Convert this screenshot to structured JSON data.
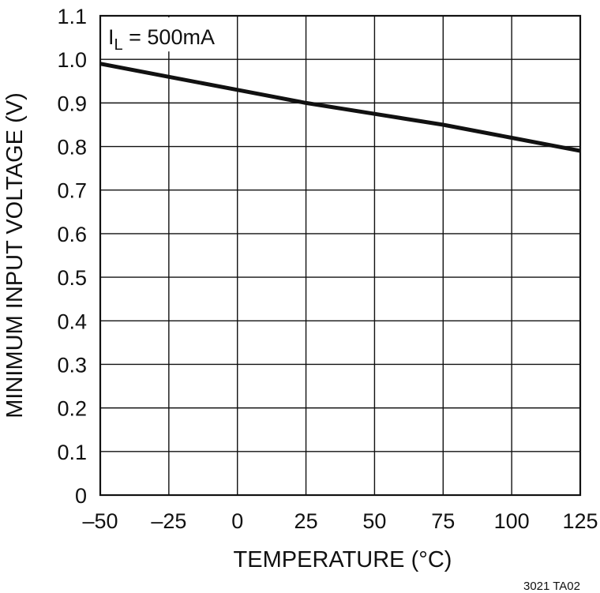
{
  "chart_data": {
    "type": "line",
    "xlabel": "TEMPERATURE (°C)",
    "ylabel": "MINIMUM INPUT VOLTAGE (V)",
    "xlim": [
      -50,
      125
    ],
    "ylim": [
      0,
      1.1
    ],
    "x_ticks": [
      "–50",
      "–25",
      "0",
      "25",
      "50",
      "75",
      "100",
      "125"
    ],
    "x_tick_values": [
      -50,
      -25,
      0,
      25,
      50,
      75,
      100,
      125
    ],
    "y_ticks": [
      "0",
      "0.1",
      "0.2",
      "0.3",
      "0.4",
      "0.5",
      "0.6",
      "0.7",
      "0.8",
      "0.9",
      "1.0",
      "1.1"
    ],
    "y_tick_values": [
      0,
      0.1,
      0.2,
      0.3,
      0.4,
      0.5,
      0.6,
      0.7,
      0.8,
      0.9,
      1.0,
      1.1
    ],
    "grid": true,
    "annotation": {
      "main": "I",
      "sub": "L",
      "rest": " = 500mA"
    },
    "series": [
      {
        "x": [
          -50,
          -25,
          0,
          25,
          50,
          75,
          100,
          125
        ],
        "y": [
          0.99,
          0.96,
          0.93,
          0.9,
          0.875,
          0.85,
          0.82,
          0.79
        ]
      }
    ]
  },
  "figure_id": "3021 TA02"
}
